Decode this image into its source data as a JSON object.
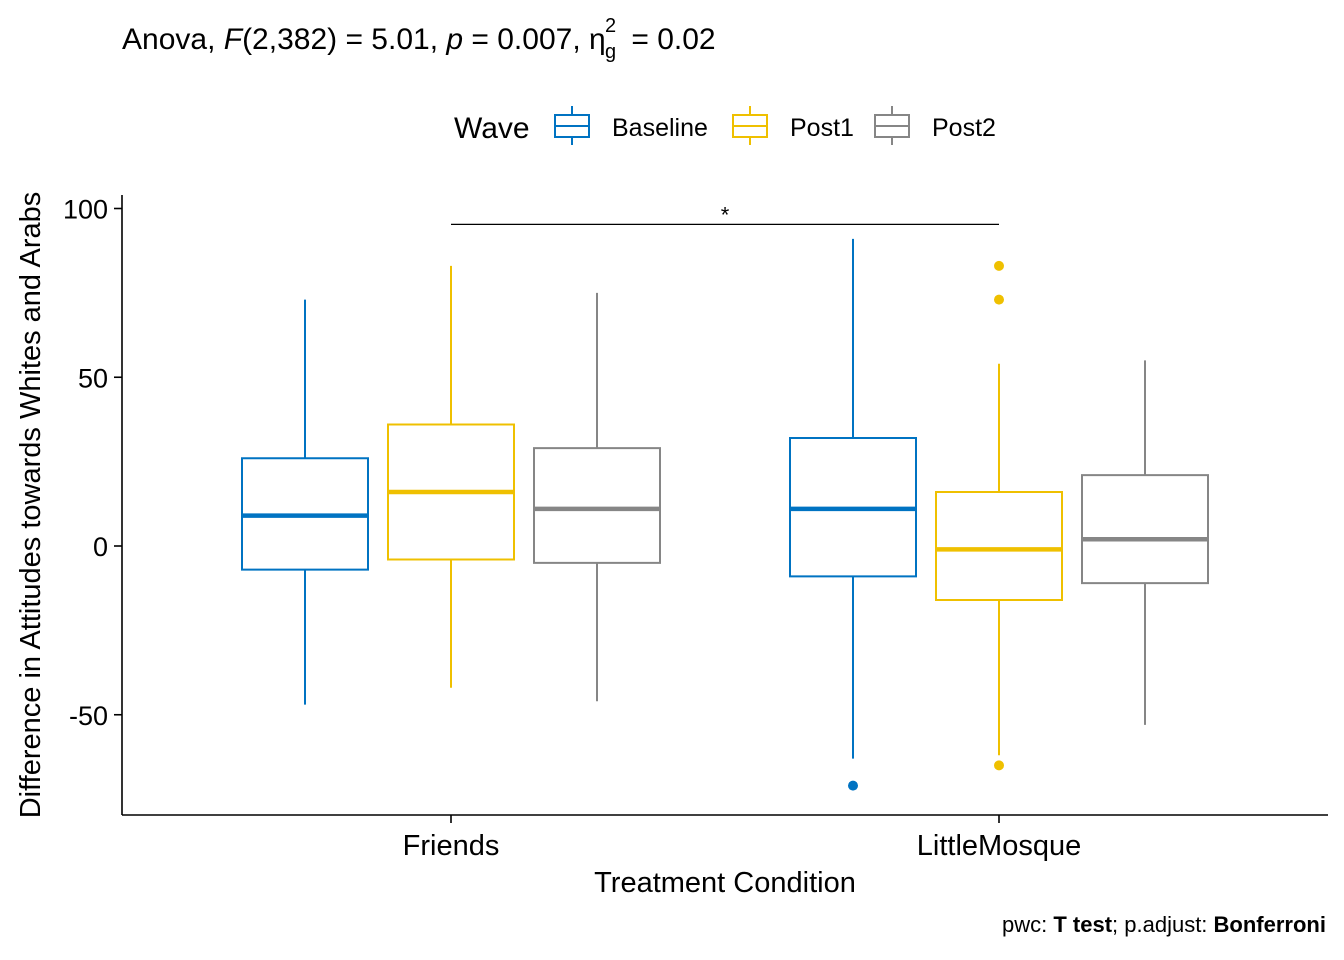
{
  "title": {
    "prefix": "Anova, ",
    "stat_letter": "F",
    "stat_df": "(2,382) = 5.01, ",
    "p_letter": "p",
    "p_value": " = 0.007, ",
    "effect_symbol": "η",
    "effect_sup": "2",
    "effect_sub": "g",
    "effect_value": " = 0.02"
  },
  "caption": {
    "pwc_label": "pwc: ",
    "pwc_method": "T test",
    "adjust_label": "; p.adjust: ",
    "adjust_method": "Bonferroni"
  },
  "chart_data": {
    "type": "boxplot",
    "xlabel": "Treatment Condition",
    "ylabel": "Difference in Attitudes towards Whites and Arabs",
    "ylim": [
      -80,
      102
    ],
    "yticks": [
      -50,
      0,
      50,
      100
    ],
    "categories": [
      "Friends",
      "LittleMosque"
    ],
    "legend": {
      "title": "Wave",
      "position": "top"
    },
    "series": [
      {
        "name": "Baseline",
        "color": "#0073C2",
        "boxes": [
          {
            "category": "Friends",
            "whisker_low": -47,
            "q1": -7,
            "median": 9,
            "q3": 26,
            "whisker_high": 73,
            "outliers": []
          },
          {
            "category": "LittleMosque",
            "whisker_low": -63,
            "q1": -9,
            "median": 11,
            "q3": 32,
            "whisker_high": 91,
            "outliers": [
              -71
            ]
          }
        ]
      },
      {
        "name": "Post1",
        "color": "#EFC000",
        "boxes": [
          {
            "category": "Friends",
            "whisker_low": -42,
            "q1": -4,
            "median": 16,
            "q3": 36,
            "whisker_high": 83,
            "outliers": []
          },
          {
            "category": "LittleMosque",
            "whisker_low": -62,
            "q1": -16,
            "median": -1,
            "q3": 16,
            "whisker_high": 54,
            "outliers": [
              83,
              73,
              -65
            ]
          }
        ]
      },
      {
        "name": "Post2",
        "color": "#868686",
        "boxes": [
          {
            "category": "Friends",
            "whisker_low": -46,
            "q1": -5,
            "median": 11,
            "q3": 29,
            "whisker_high": 75,
            "outliers": []
          },
          {
            "category": "LittleMosque",
            "whisker_low": -53,
            "q1": -11,
            "median": 2,
            "q3": 21,
            "whisker_high": 55,
            "outliers": []
          }
        ]
      }
    ],
    "annotations": [
      {
        "type": "significance-bracket",
        "from": "Friends",
        "to": "LittleMosque",
        "y": 95,
        "label": "*"
      }
    ]
  }
}
